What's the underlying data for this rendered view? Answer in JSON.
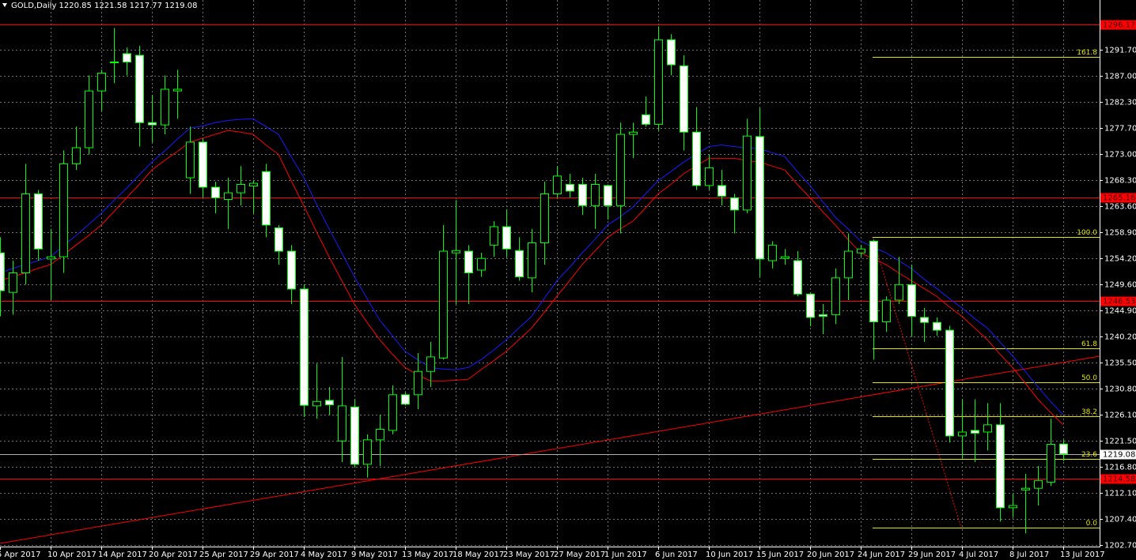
{
  "chart_data": {
    "type": "candlestick",
    "title": "GOLD,Daily  1220.85 1221.58 1217.77 1219.08",
    "categories": [
      "5 Apr 2017",
      null,
      null,
      null,
      "10 Apr 2017",
      null,
      null,
      null,
      "14 Apr 2017",
      null,
      null,
      null,
      "20 Apr 2017",
      null,
      null,
      null,
      "25 Apr 2017",
      null,
      null,
      null,
      "29 Apr 2017",
      null,
      null,
      null,
      "4 May 2017",
      null,
      null,
      null,
      "9 May 2017",
      null,
      null,
      null,
      "13 May 2017",
      null,
      null,
      null,
      "18 May 2017",
      null,
      null,
      null,
      "23 May 2017",
      null,
      null,
      null,
      "27 May 2017",
      null,
      null,
      null,
      "1 Jun 2017",
      null,
      null,
      null,
      "6 Jun 2017",
      null,
      null,
      null,
      "10 Jun 2017",
      null,
      null,
      null,
      "15 Jun 2017",
      null,
      null,
      null,
      "20 Jun 2017",
      null,
      null,
      null,
      "24 Jun 2017",
      null,
      null,
      null,
      "29 Jun 2017",
      null,
      null,
      null,
      "4 Jul 2017",
      null,
      null,
      null,
      "8 Jul 2017",
      null,
      null,
      null,
      "13 Jul 2017"
    ],
    "open": [
      1255.2,
      1248.1,
      1251.6,
      1265.8,
      1254.1,
      1254.5,
      1271.2,
      1274.1,
      1284.3,
      1289.4,
      1291.0,
      1290.7,
      1278.6,
      1278.2,
      1284.3,
      1268.7,
      1275.1,
      1267.0,
      1264.8,
      1266.0,
      1267.2,
      1269.8,
      1259.7,
      1255.5,
      1248.7,
      1227.7,
      1228.7,
      1221.4,
      1227.5,
      1217.2,
      1221.6,
      1223.3,
      1229.7,
      1229.7,
      1233.9,
      1236.3,
      1255.2,
      1255.5,
      1252.1,
      1256.6,
      1259.9,
      1255.6,
      1250.7,
      1257.0,
      1265.8,
      1267.5,
      1267.5,
      1263.7,
      1267.3,
      1263.7,
      1276.5,
      1280.0,
      1278.3,
      1293.5,
      1288.8,
      1276.9,
      1267.3,
      1267.3,
      1265.1,
      1262.9,
      1276.1,
      1253.8,
      1254.2,
      1253.8,
      1247.8,
      1244.1,
      1244.1,
      1250.7,
      1255.2,
      1257.3,
      1242.8,
      1246.7,
      1249.5,
      1243.6,
      1242.7,
      1241.3,
      1222.3,
      1223.3,
      1223.0,
      1224.3,
      1209.4,
      1212.6,
      1212.9,
      1214.0,
      1220.85
    ],
    "high": [
      1258.0,
      1253.8,
      1271.2,
      1266.5,
      1259.5,
      1273.6,
      1277.9,
      1287.1,
      1288.1,
      1295.6,
      1292.1,
      1292.4,
      1283.6,
      1287.1,
      1288.1,
      1277.9,
      1275.8,
      1268.0,
      1268.7,
      1270.8,
      1268.2,
      1271.2,
      1260.2,
      1256.6,
      1249.5,
      1235.3,
      1231.1,
      1236.5,
      1228.9,
      1222.6,
      1226.1,
      1231.4,
      1230.1,
      1237.2,
      1239.2,
      1260.2,
      1264.7,
      1256.6,
      1255.2,
      1260.9,
      1263.0,
      1258.0,
      1259.5,
      1268.0,
      1270.8,
      1269.4,
      1268.7,
      1269.4,
      1267.5,
      1278.6,
      1278.6,
      1283.3,
      1295.9,
      1294.5,
      1290.7,
      1281.4,
      1272.9,
      1270.1,
      1265.8,
      1279.3,
      1281.2,
      1257.3,
      1255.9,
      1255.5,
      1248.1,
      1246.0,
      1252.4,
      1258.7,
      1256.6,
      1257.6,
      1247.4,
      1254.5,
      1253.1,
      1245.3,
      1243.6,
      1242.1,
      1228.9,
      1228.9,
      1228.2,
      1228.2,
      1211.9,
      1215.5,
      1216.9,
      1225.4,
      1221.58
    ],
    "low": [
      1243.8,
      1244.1,
      1249.5,
      1253.8,
      1246.7,
      1251.6,
      1270.1,
      1272.9,
      1280.7,
      1285.7,
      1287.1,
      1274.3,
      1275.1,
      1276.5,
      1279.3,
      1265.8,
      1265.1,
      1262.3,
      1259.5,
      1263.7,
      1262.3,
      1258.0,
      1253.1,
      1246.0,
      1225.7,
      1225.4,
      1226.1,
      1217.6,
      1216.6,
      1214.8,
      1216.9,
      1222.6,
      1227.8,
      1227.1,
      1231.1,
      1236.0,
      1246.0,
      1246.0,
      1250.9,
      1254.5,
      1254.5,
      1250.2,
      1248.1,
      1253.1,
      1265.1,
      1265.1,
      1262.0,
      1259.5,
      1261.2,
      1258.7,
      1272.2,
      1277.9,
      1277.2,
      1287.1,
      1273.6,
      1266.5,
      1266.5,
      1263.7,
      1258.7,
      1262.3,
      1250.9,
      1252.4,
      1253.1,
      1247.4,
      1242.0,
      1240.6,
      1242.4,
      1246.7,
      1254.5,
      1236.0,
      1241.0,
      1246.0,
      1240.3,
      1239.2,
      1240.3,
      1221.1,
      1218.3,
      1217.6,
      1219.7,
      1206.9,
      1207.7,
      1204.8,
      1209.8,
      1213.3,
      1217.77
    ],
    "close": [
      1248.4,
      1251.6,
      1265.8,
      1255.9,
      1254.5,
      1271.2,
      1274.1,
      1284.3,
      1287.5,
      1289.5,
      1289.5,
      1278.6,
      1278.2,
      1284.6,
      1284.6,
      1275.1,
      1267.0,
      1265.1,
      1266.0,
      1267.5,
      1267.7,
      1260.2,
      1255.5,
      1248.7,
      1227.8,
      1228.5,
      1227.9,
      1227.7,
      1217.2,
      1221.6,
      1223.5,
      1229.7,
      1228.0,
      1233.9,
      1236.5,
      1255.5,
      1255.6,
      1251.6,
      1254.2,
      1259.9,
      1255.9,
      1250.9,
      1257.0,
      1265.8,
      1269.0,
      1266.3,
      1263.7,
      1267.5,
      1263.7,
      1276.5,
      1276.9,
      1278.3,
      1293.5,
      1289.0,
      1276.9,
      1267.3,
      1270.5,
      1265.4,
      1262.9,
      1276.2,
      1254.1,
      1256.6,
      1254.5,
      1247.8,
      1243.6,
      1243.8,
      1250.7,
      1255.5,
      1255.9,
      1242.8,
      1246.7,
      1249.5,
      1243.8,
      1242.7,
      1241.3,
      1222.3,
      1223.0,
      1222.8,
      1224.3,
      1209.4,
      1209.8,
      1212.9,
      1214.3,
      1220.8,
      1219.08
    ],
    "up_color": "#000000",
    "down_color": "#ffffff",
    "wick_color": "#00ff00",
    "series": [
      {
        "color": "#1a1aff",
        "values": [
          1251.6,
          1252.4,
          1253.1,
          1253.8,
          1254.5,
          1256.5,
          1258.3,
          1260.3,
          1262.3,
          1264.6,
          1266.8,
          1269.2,
          1271.5,
          1273.5,
          1275.6,
          1277.6,
          1278.0,
          1278.6,
          1279.0,
          1279.2,
          1279.3,
          1277.9,
          1276.5,
          1272.5,
          1268.7,
          1264.0,
          1259.5,
          1255.2,
          1250.9,
          1247.0,
          1243.1,
          1240.3,
          1237.5,
          1236.0,
          1234.6,
          1234.3,
          1234.2,
          1234.6,
          1236.0,
          1237.7,
          1239.6,
          1241.7,
          1243.8,
          1247.0,
          1250.2,
          1252.6,
          1255.2,
          1257.6,
          1260.2,
          1261.7,
          1263.4,
          1265.8,
          1268.2,
          1269.8,
          1271.5,
          1272.9,
          1274.3,
          1274.6,
          1274.3,
          1274.1,
          1273.9,
          1273.2,
          1272.5,
          1269.8,
          1267.3,
          1264.4,
          1261.6,
          1259.5,
          1257.3,
          1256.2,
          1255.2,
          1253.8,
          1252.4,
          1250.5,
          1248.8,
          1247.0,
          1245.3,
          1243.4,
          1241.7,
          1239.2,
          1236.7,
          1233.9,
          1231.1,
          1228.5,
          1226.1
        ]
      },
      {
        "color": "#ff0000",
        "values": [
          1250.2,
          1250.9,
          1251.6,
          1252.4,
          1253.1,
          1254.8,
          1256.6,
          1258.3,
          1260.2,
          1262.6,
          1265.1,
          1267.5,
          1270.1,
          1271.8,
          1273.4,
          1275.1,
          1275.8,
          1276.5,
          1277.2,
          1276.9,
          1276.5,
          1274.6,
          1272.9,
          1268.2,
          1263.7,
          1259.0,
          1254.5,
          1250.2,
          1246.0,
          1242.7,
          1239.6,
          1237.0,
          1234.6,
          1233.3,
          1232.2,
          1232.2,
          1232.3,
          1232.5,
          1234.2,
          1235.8,
          1237.5,
          1239.6,
          1241.7,
          1244.5,
          1247.4,
          1250.2,
          1253.1,
          1255.5,
          1258.0,
          1259.5,
          1260.9,
          1263.3,
          1265.8,
          1267.5,
          1269.4,
          1270.8,
          1272.2,
          1272.2,
          1272.2,
          1271.8,
          1271.5,
          1270.8,
          1270.1,
          1267.5,
          1265.1,
          1262.6,
          1260.2,
          1257.6,
          1255.2,
          1254.1,
          1253.1,
          1251.6,
          1250.2,
          1248.8,
          1247.4,
          1245.5,
          1243.8,
          1241.7,
          1239.6,
          1237.0,
          1234.6,
          1231.8,
          1228.9,
          1226.5,
          1224.3
        ]
      }
    ],
    "ylim": [
      1202.42,
      1300.64
    ],
    "yticks": [
      {
        "value": 1291.7,
        "label": "1291.70"
      },
      {
        "value": 1287.0,
        "label": "1287.00"
      },
      {
        "value": 1282.3,
        "label": "1282.30"
      },
      {
        "value": 1277.7,
        "label": "1277.70"
      },
      {
        "value": 1273.0,
        "label": "1273.00"
      },
      {
        "value": 1268.3,
        "label": "1268.30"
      },
      {
        "value": 1263.6,
        "label": "1263.60"
      },
      {
        "value": 1258.9,
        "label": "1258.90"
      },
      {
        "value": 1254.2,
        "label": "1254.20"
      },
      {
        "value": 1249.6,
        "label": "1249.60"
      },
      {
        "value": 1244.9,
        "label": "1244.90"
      },
      {
        "value": 1240.2,
        "label": "1240.20"
      },
      {
        "value": 1235.5,
        "label": "1235.50"
      },
      {
        "value": 1230.8,
        "label": "1230.80"
      },
      {
        "value": 1226.1,
        "label": "1226.10"
      },
      {
        "value": 1221.5,
        "label": "1221.50"
      },
      {
        "value": 1216.8,
        "label": "1216.80"
      },
      {
        "value": 1212.1,
        "label": "1212.10"
      },
      {
        "value": 1207.4,
        "label": "1207.40"
      },
      {
        "value": 1202.7,
        "label": "1202.70"
      }
    ],
    "grid": true,
    "hlines": [
      1296.17,
      1265.16,
      1246.53,
      1214.58
    ],
    "hline_color": "#ff0000",
    "last_price": 1219.08,
    "fibonacci": {
      "color": "#e6e600",
      "levels": [
        {
          "level": "161.8",
          "price": 1290.35
        },
        {
          "level": "100.0",
          "price": 1258.06
        },
        {
          "level": "61.8",
          "price": 1238.1
        },
        {
          "level": "50.0",
          "price": 1231.94
        },
        {
          "level": "38.2",
          "price": 1225.78
        },
        {
          "level": "23.6",
          "price": 1218.15
        },
        {
          "level": "0.0",
          "price": 1205.82
        }
      ]
    }
  }
}
